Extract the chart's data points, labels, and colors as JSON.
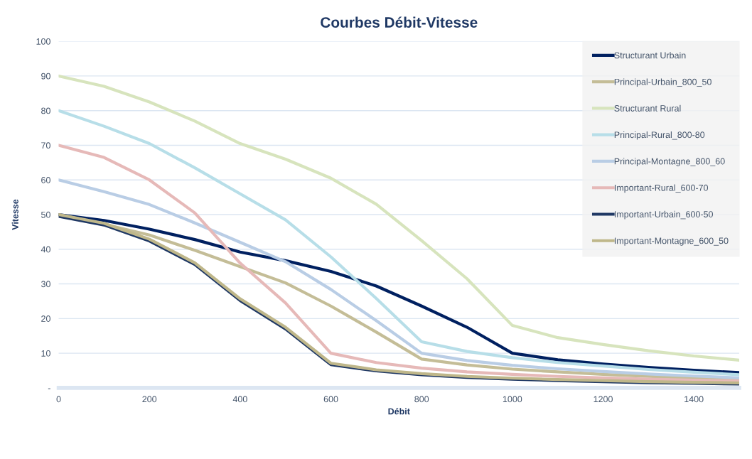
{
  "chart_data": {
    "type": "line",
    "title": "Courbes Débit-Vitesse",
    "xlabel": "Débit",
    "ylabel": "Vitesse",
    "xlim": [
      0,
      1500
    ],
    "xticks": [
      0,
      200,
      400,
      600,
      800,
      1000,
      1200,
      1400
    ],
    "ylim": [
      0,
      100
    ],
    "yticks": [
      {
        "value": 0,
        "label": "-"
      },
      10,
      20,
      30,
      40,
      50,
      60,
      70,
      80,
      90,
      100
    ],
    "grid": "y",
    "legend": "top right",
    "line_style": "solid",
    "marker": "none",
    "x": [
      0,
      100,
      200,
      300,
      400,
      500,
      600,
      700,
      800,
      900,
      1000,
      1100,
      1200,
      1300,
      1400,
      1500
    ],
    "series": [
      {
        "name": "Structurant Urbain",
        "color": "#002060",
        "values": [
          50,
          48.3,
          45.8,
          42.8,
          39.2,
          36.7,
          33.6,
          29.4,
          23.6,
          17.5,
          10,
          8.1,
          6.9,
          5.9,
          5.1,
          4.4
        ]
      },
      {
        "name": "Principal-Urbain_800_50",
        "color": "#c4bd97",
        "values": [
          50,
          47.2,
          44.1,
          39.7,
          35,
          30.3,
          23.6,
          16.1,
          8.3,
          6.6,
          5.4,
          4.6,
          3.9,
          3.3,
          2.8,
          2.4
        ]
      },
      {
        "name": "Structurant Rural",
        "color": "#d7e4bd",
        "values": [
          90,
          87,
          82.5,
          77,
          70.5,
          66,
          60.5,
          53,
          42.5,
          31.5,
          18,
          14.5,
          12.5,
          10.7,
          9.2,
          8
        ]
      },
      {
        "name": "Principal-Rural_800-80",
        "color": "#b7dee8",
        "values": [
          80,
          75.5,
          70.5,
          63.5,
          56,
          48.5,
          37.8,
          25.8,
          13.3,
          10.5,
          8.7,
          7.3,
          6.3,
          5.3,
          4.5,
          3.8
        ]
      },
      {
        "name": "Principal-Montagne_800_60",
        "color": "#b9cde5",
        "values": [
          60,
          56.6,
          52.9,
          47.6,
          42,
          36.4,
          28.4,
          19.4,
          10,
          7.9,
          6.5,
          5.5,
          4.7,
          4,
          3.4,
          2.9
        ]
      },
      {
        "name": "Important-Rural_600-70",
        "color": "#e6b9b8",
        "values": [
          70,
          66.5,
          60,
          50.5,
          36,
          24.5,
          10,
          7.3,
          5.7,
          4.6,
          3.9,
          3.3,
          2.9,
          2.5,
          2.2,
          2
        ]
      },
      {
        "name": "Important-Urbain_600-50",
        "color": "#1f3864",
        "values": [
          49.5,
          47,
          42.4,
          35.6,
          25.2,
          17,
          6.7,
          4.9,
          3.8,
          3,
          2.5,
          2.1,
          1.8,
          1.5,
          1.3,
          1.1
        ]
      },
      {
        "name": "Important-Montagne_600_50",
        "color": "#bfb78a",
        "values": [
          50,
          47.5,
          42.9,
          36.1,
          25.7,
          17.5,
          7.1,
          5.2,
          4.1,
          3.3,
          2.8,
          2.4,
          2.1,
          1.8,
          1.6,
          1.4
        ]
      }
    ]
  }
}
